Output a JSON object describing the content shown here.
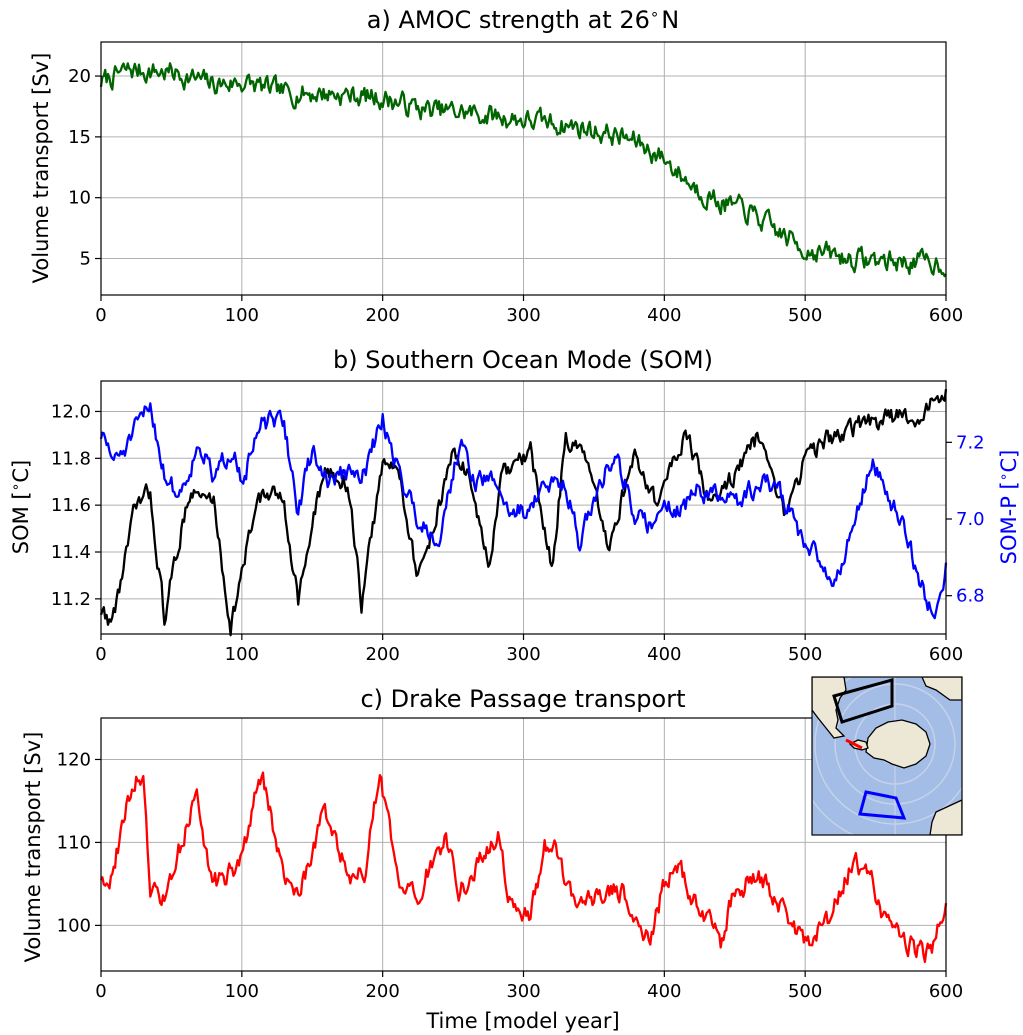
{
  "chart_data": [
    {
      "type": "line",
      "title": "a) AMOC strength at 26$^\\circ$N",
      "title_text": "a) AMOC strength at 26",
      "title_sup": "∘",
      "title_tail": "N",
      "xlabel": "",
      "ylabel": "Volume transport [Sv]",
      "xlim": [
        0,
        600
      ],
      "ylim": [
        2,
        22.8
      ],
      "xticks": [
        0,
        100,
        200,
        300,
        400,
        500,
        600
      ],
      "yticks": [
        5,
        10,
        15,
        20
      ],
      "grid": true,
      "series": [
        {
          "color": "#006400",
          "x": [
            0,
            20,
            50,
            80,
            100,
            130,
            160,
            200,
            230,
            260,
            300,
            330,
            360,
            380,
            400,
            420,
            440,
            460,
            480,
            500,
            530,
            560,
            600
          ],
          "y": [
            19.5,
            20.5,
            20.3,
            19.3,
            19.5,
            18.6,
            18.6,
            18.2,
            17.2,
            17.0,
            16.4,
            16.0,
            15.3,
            14.6,
            13.2,
            11.0,
            9.6,
            8.8,
            7.2,
            5.8,
            5.0,
            4.8,
            4.6
          ]
        }
      ]
    },
    {
      "type": "line",
      "title": "b) Southern Ocean Mode (SOM)",
      "xlabel": "",
      "ylabel": "SOM [$^\\circ$C]",
      "ylabel_parts": [
        "SOM [",
        "∘",
        "C]"
      ],
      "ylabel_right": "SOM-P [$^\\circ$C]",
      "ylabel_right_parts": [
        "SOM-P [",
        "∘",
        "C]"
      ],
      "xlim": [
        0,
        600
      ],
      "ylim": [
        11.05,
        12.13
      ],
      "ylim_right": [
        6.7,
        7.36
      ],
      "xticks": [
        0,
        100,
        200,
        300,
        400,
        500,
        600
      ],
      "yticks": [
        "11.2",
        "11.4",
        "11.6",
        "11.8",
        "12.0"
      ],
      "yticks_right": [
        "6.8",
        "7.0",
        "7.2"
      ],
      "grid": true,
      "series": [
        {
          "axis": "left",
          "color": "#000000",
          "x": [
            0,
            8,
            25,
            35,
            45,
            62,
            80,
            92,
            112,
            130,
            140,
            158,
            175,
            185,
            200,
            212,
            225,
            240,
            250,
            262,
            275,
            285,
            305,
            320,
            330,
            345,
            360,
            378,
            395,
            415,
            432,
            452,
            465,
            485,
            500,
            515,
            545,
            560,
            580,
            600
          ],
          "y": [
            11.15,
            11.1,
            11.6,
            11.65,
            11.12,
            11.65,
            11.62,
            11.08,
            11.65,
            11.62,
            11.2,
            11.74,
            11.7,
            11.18,
            11.78,
            11.74,
            11.28,
            11.6,
            11.82,
            11.72,
            11.33,
            11.72,
            11.82,
            11.33,
            11.9,
            11.78,
            11.4,
            11.82,
            11.6,
            11.92,
            11.6,
            11.75,
            11.88,
            11.55,
            11.8,
            11.88,
            11.95,
            11.97,
            11.98,
            12.08
          ]
        },
        {
          "axis": "right",
          "color": "#0000ff",
          "x": [
            0,
            10,
            20,
            35,
            45,
            55,
            70,
            80,
            95,
            100,
            115,
            130,
            140,
            150,
            160,
            175,
            185,
            200,
            212,
            225,
            240,
            250,
            255,
            265,
            280,
            290,
            300,
            315,
            330,
            340,
            350,
            365,
            380,
            390,
            400,
            410,
            425,
            440,
            455,
            470,
            480,
            490,
            500,
            510,
            520,
            535,
            548,
            560,
            570,
            585,
            593,
            600
          ],
          "y": [
            7.22,
            7.15,
            7.2,
            7.3,
            7.12,
            7.06,
            7.2,
            7.1,
            7.2,
            7.1,
            7.25,
            7.25,
            7.02,
            7.18,
            7.1,
            7.12,
            7.1,
            7.26,
            7.12,
            7.0,
            6.95,
            7.12,
            7.2,
            7.1,
            7.1,
            7.02,
            7.02,
            7.08,
            7.1,
            6.93,
            7.05,
            7.18,
            7.0,
            6.98,
            7.05,
            7.02,
            7.08,
            7.05,
            7.05,
            7.1,
            7.08,
            7.02,
            6.92,
            6.9,
            6.82,
            7.0,
            7.15,
            7.05,
            6.98,
            6.8,
            6.75,
            6.88
          ]
        }
      ]
    },
    {
      "type": "line",
      "title": "c) Drake Passage transport",
      "xlabel": "Time [model year]",
      "ylabel": "Volume transport [Sv]",
      "xlim": [
        0,
        600
      ],
      "ylim": [
        94.5,
        125
      ],
      "xticks": [
        0,
        100,
        200,
        300,
        400,
        500,
        600
      ],
      "yticks": [
        100,
        110,
        120
      ],
      "grid": true,
      "series": [
        {
          "color": "#ff0000",
          "x": [
            0,
            8,
            15,
            25,
            30,
            35,
            42,
            50,
            60,
            68,
            75,
            83,
            95,
            105,
            112,
            115,
            125,
            135,
            145,
            158,
            165,
            178,
            188,
            198,
            202,
            212,
            225,
            238,
            245,
            255,
            270,
            282,
            290,
            305,
            315,
            322,
            330,
            340,
            355,
            370,
            380,
            390,
            400,
            410,
            425,
            440,
            450,
            465,
            480,
            492,
            500,
            515,
            532,
            545,
            555,
            565,
            580,
            590,
            600
          ],
          "y": [
            106,
            106,
            112,
            118,
            117,
            104,
            103,
            105,
            112,
            116,
            108,
            105,
            107,
            111,
            118,
            118,
            109,
            104,
            106,
            114,
            111,
            105,
            107,
            118,
            114,
            104,
            103,
            109,
            110,
            104,
            108,
            111,
            103,
            101,
            109,
            110,
            105,
            103,
            104,
            104,
            100,
            99,
            105,
            107,
            102,
            98,
            104,
            106,
            103,
            100,
            98,
            100,
            107,
            107,
            100,
            99,
            97,
            97,
            103
          ]
        }
      ]
    }
  ],
  "inset_map": {
    "ocean_color": "#a4bde6",
    "land_color": "#ede8d5",
    "box_colors": [
      "#000000",
      "#0000ff"
    ],
    "line_color": "#ff0000"
  }
}
